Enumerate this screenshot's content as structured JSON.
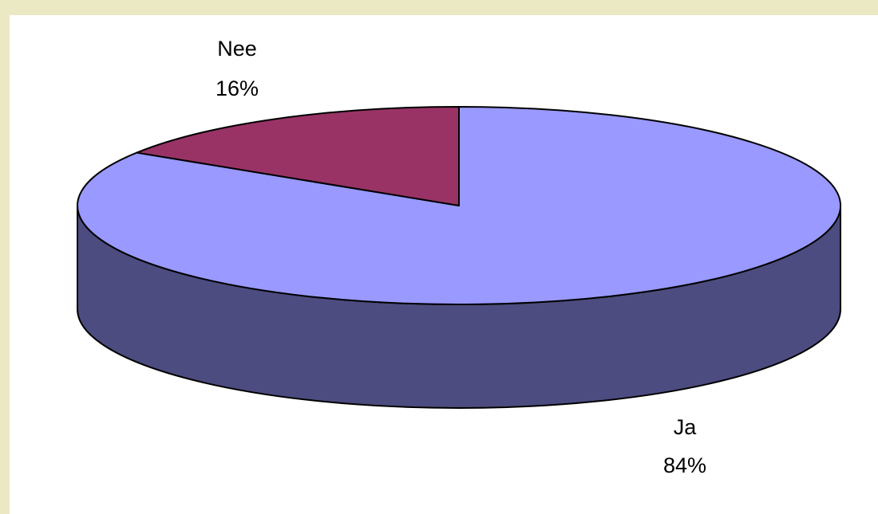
{
  "chart_data": {
    "type": "pie",
    "style": "3d",
    "slices": [
      {
        "label": "Ja",
        "value": 84,
        "value_label": "84%",
        "color": "#9999ff",
        "side_color": "#4c4c80"
      },
      {
        "label": "Nee",
        "value": 16,
        "value_label": "16%",
        "color": "#993366",
        "side_color": "#4c1933"
      }
    ]
  },
  "colors": {
    "background": "#ebe8c4",
    "plot_area": "#ffffff",
    "outline": "#000000"
  }
}
